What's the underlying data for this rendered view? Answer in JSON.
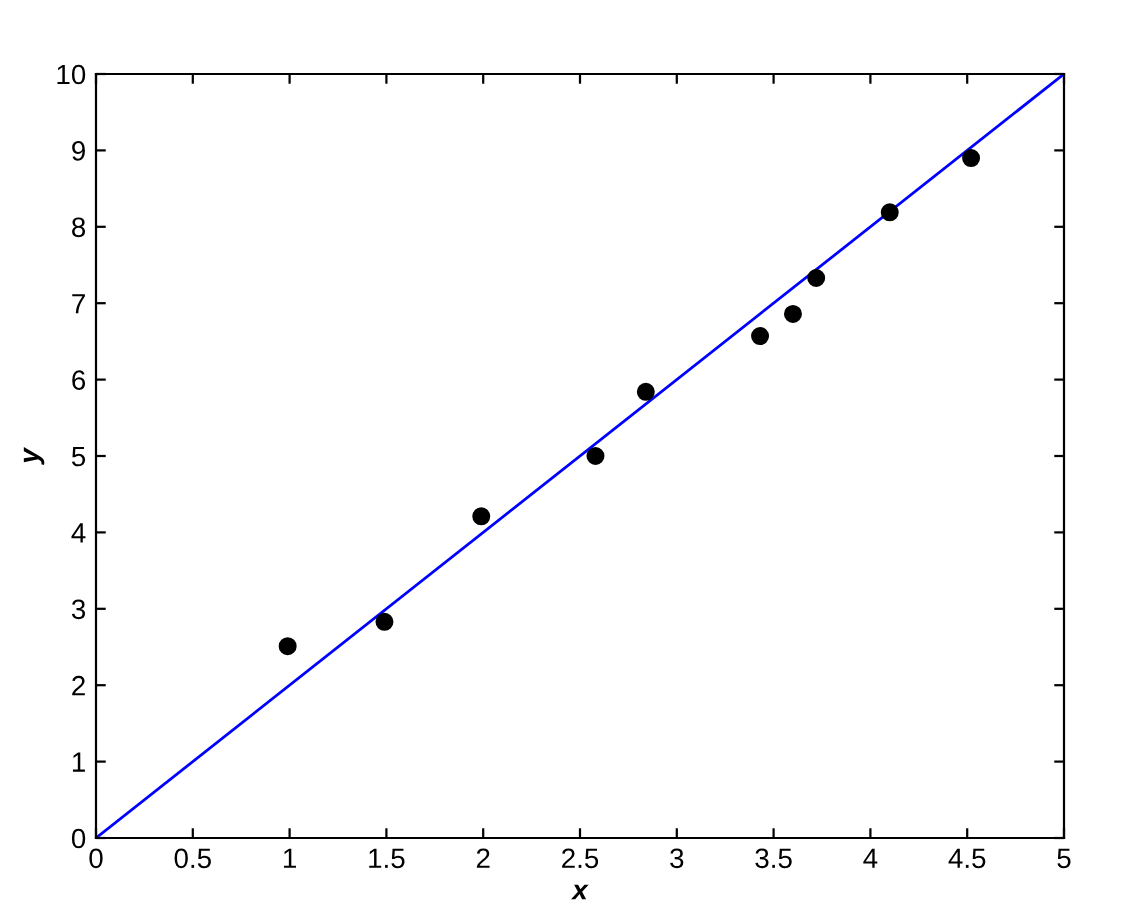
{
  "chart_data": {
    "type": "scatter",
    "xlabel": "x",
    "ylabel": "y",
    "xlim": [
      0,
      5
    ],
    "ylim": [
      0,
      10
    ],
    "xticks": [
      0,
      0.5,
      1,
      1.5,
      2,
      2.5,
      3,
      3.5,
      4,
      4.5,
      5
    ],
    "yticks": [
      0,
      1,
      2,
      3,
      4,
      5,
      6,
      7,
      8,
      9,
      10
    ],
    "grid": false,
    "legend": false,
    "series": [
      {
        "color": "#000000",
        "marker": "circle",
        "x": [
          0.99,
          1.49,
          1.99,
          2.58,
          2.84,
          3.43,
          3.6,
          3.72,
          4.1,
          4.52
        ],
        "values": [
          2.51,
          2.83,
          4.21,
          5.0,
          5.84,
          6.57,
          6.86,
          7.33,
          8.19,
          8.9
        ]
      },
      {
        "type": "line",
        "color": "#0000ff",
        "marker": "none",
        "x": [
          0,
          5
        ],
        "values": [
          0,
          10
        ]
      }
    ]
  }
}
